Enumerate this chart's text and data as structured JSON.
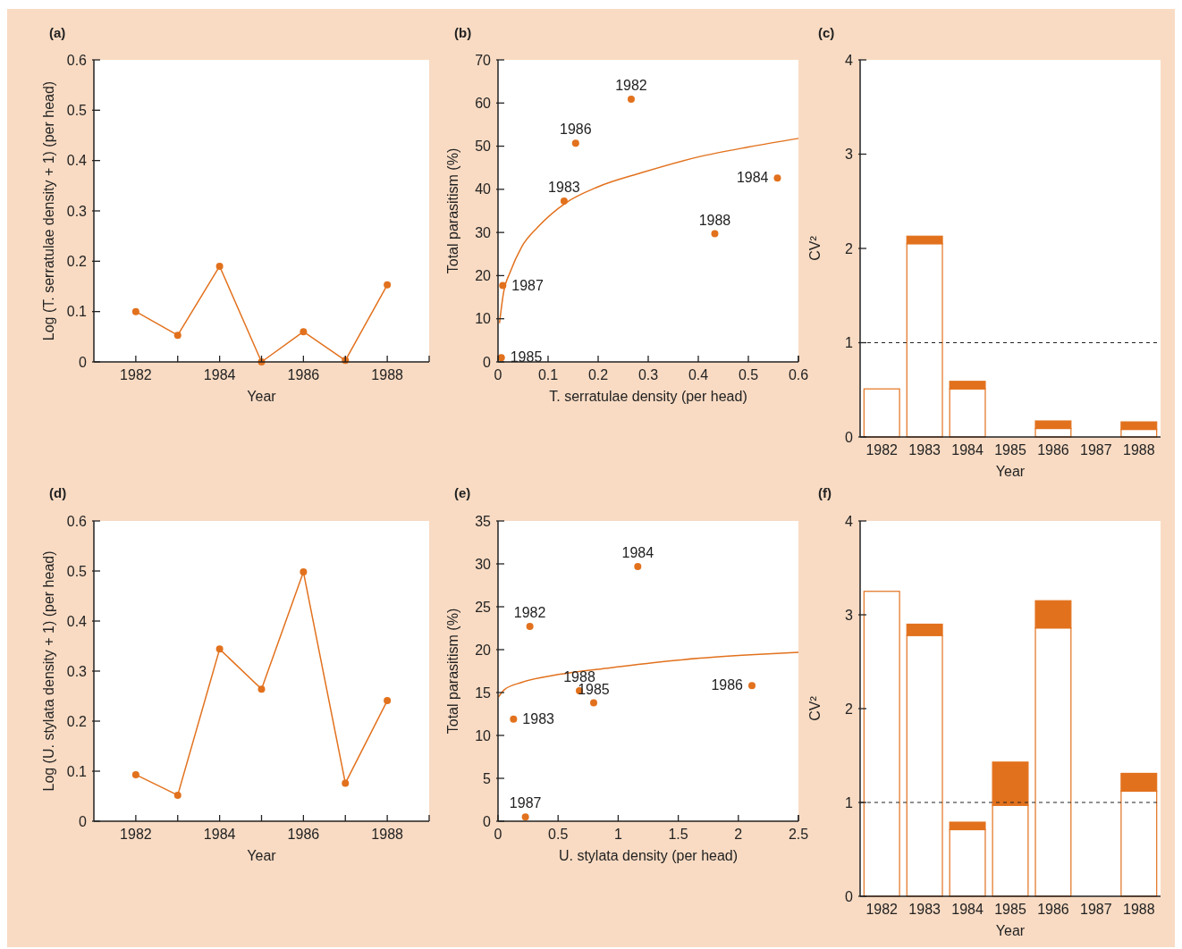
{
  "chart_data": [
    {
      "type": "line",
      "title": "(a)",
      "xlabel": "Year",
      "ylabel": "Log (T. serratulae density + 1) (per head)",
      "x": [
        1982,
        1983,
        1984,
        1985,
        1986,
        1987,
        1988
      ],
      "series": [
        {
          "color": "#e2711d",
          "values": [
            0.1,
            0.053,
            0.19,
            0,
            0.06,
            0.003,
            0.153
          ]
        }
      ],
      "xlim": [
        1981,
        1989
      ],
      "xticks": [
        1982,
        {
          "value": 1983,
          "label": null
        },
        1984,
        {
          "value": 1985,
          "label": null
        },
        1986,
        {
          "value": 1987,
          "label": null
        },
        1988
      ],
      "ylim": [
        0,
        0.6
      ],
      "yticks": [
        0,
        0.1,
        0.2,
        0.3,
        0.4,
        0.5,
        0.6
      ],
      "marker": "circle"
    },
    {
      "type": "scatter",
      "title": "(b)",
      "xlabel": "T. serratulae density (per head)",
      "ylabel": "Total parasitism (%)",
      "series": [
        {
          "color": "#e2711d",
          "x": [
            0.266,
            0.132,
            0.558,
            0.0066,
            0.155,
            0.0095,
            0.433
          ],
          "values": [
            60.9,
            37.3,
            42.6,
            1,
            50.7,
            17.7,
            29.7
          ]
        },
        {
          "type": "line",
          "color": "#e2711d",
          "marker": "none",
          "x": [
            0.003,
            0.011,
            0.025,
            0.047,
            0.08,
            0.136,
            0.2,
            0.285,
            0.4,
            0.5,
            0.6
          ],
          "values": [
            9,
            16,
            21,
            26.6,
            31.3,
            36.9,
            40.6,
            43.8,
            47.5,
            49.8,
            51.8
          ]
        }
      ],
      "xlim": [
        0,
        0.6
      ],
      "xticks": [
        0,
        0.1,
        0.2,
        0.3,
        0.4,
        0.5,
        0.6
      ],
      "ylim": [
        0,
        70
      ],
      "yticks": [
        0,
        10,
        20,
        30,
        40,
        50,
        60,
        70
      ],
      "marker": "circle",
      "annotations": [
        {
          "text": "1982",
          "x": 0.266,
          "y": 60.9
        },
        {
          "text": "1983",
          "x": 0.132,
          "y": 37.3
        },
        {
          "text": "1984",
          "x": 0.558,
          "y": 42.6
        },
        {
          "text": "1985",
          "x": 0.0066,
          "y": 1
        },
        {
          "text": "1986",
          "x": 0.155,
          "y": 50.7
        },
        {
          "text": "1987",
          "x": 0.0095,
          "y": 17.7
        },
        {
          "text": "1988",
          "x": 0.433,
          "y": 29.7
        }
      ]
    },
    {
      "type": "bar",
      "title": "(c)",
      "xlabel": "Year",
      "ylabel": "CV²",
      "categories": [
        "1982",
        "1983",
        "1984",
        "1985",
        "1986",
        "1987",
        "1988"
      ],
      "stacked": true,
      "series": [
        {
          "color": "#ffffff",
          "values": [
            0.51,
            2.05,
            0.51,
            0,
            0.09,
            0,
            0.08
          ]
        },
        {
          "color": "#e2711d",
          "values": [
            0,
            0.08,
            0.08,
            0,
            0.08,
            0,
            0.08
          ]
        }
      ],
      "ylim": [
        0,
        4
      ],
      "yticks": [
        0,
        1,
        2,
        3,
        4
      ],
      "ref_lines": [
        {
          "axis": "y",
          "value": 1,
          "line_style": "dashed",
          "color": "#222222"
        }
      ]
    },
    {
      "type": "line",
      "title": "(d)",
      "xlabel": "Year",
      "ylabel": "Log (U. stylata density + 1) (per head)",
      "x": [
        1982,
        1983,
        1984,
        1985,
        1986,
        1987,
        1988
      ],
      "series": [
        {
          "color": "#e2711d",
          "values": [
            0.093,
            0.052,
            0.344,
            0.264,
            0.498,
            0.076,
            0.241
          ]
        }
      ],
      "xlim": [
        1981,
        1989
      ],
      "xticks": [
        1982,
        {
          "value": 1983,
          "label": null
        },
        1984,
        {
          "value": 1985,
          "label": null
        },
        1986,
        {
          "value": 1987,
          "label": null
        },
        1988
      ],
      "ylim": [
        0,
        0.6
      ],
      "yticks": [
        0,
        0.1,
        0.2,
        0.3,
        0.4,
        0.5,
        0.6
      ],
      "marker": "circle"
    },
    {
      "type": "scatter",
      "title": "(e)",
      "xlabel": "U. stylata density (per head)",
      "ylabel": "Total parasitism (%)",
      "series": [
        {
          "color": "#e2711d",
          "x": [
            0.265,
            0.129,
            1.163,
            0.796,
            2.113,
            0.228,
            0.677
          ],
          "values": [
            22.7,
            11.9,
            29.7,
            13.8,
            15.8,
            0.5,
            15.2
          ]
        },
        {
          "type": "line",
          "color": "#e2711d",
          "marker": "none",
          "x": [
            0.005,
            0.05,
            0.2,
            0.5,
            0.94,
            1.3,
            1.68,
            2.1,
            2.5
          ],
          "values": [
            14.5,
            15.3,
            16.2,
            17.1,
            17.9,
            18.5,
            19,
            19.4,
            19.7
          ]
        }
      ],
      "xlim": [
        0,
        2.5
      ],
      "xticks": [
        0,
        0.5,
        1,
        {
          "value": 1.5,
          "label": "1.5"
        },
        2,
        2.5
      ],
      "ylim": [
        0,
        35
      ],
      "yticks": [
        0,
        5,
        10,
        15,
        20,
        25,
        30,
        35
      ],
      "marker": "circle",
      "annotations": [
        {
          "text": "1982",
          "x": 0.265,
          "y": 22.7
        },
        {
          "text": "1983",
          "x": 0.129,
          "y": 11.9
        },
        {
          "text": "1984",
          "x": 1.163,
          "y": 29.7
        },
        {
          "text": "1985",
          "x": 0.796,
          "y": 13.8
        },
        {
          "text": "1986",
          "x": 2.113,
          "y": 15.8
        },
        {
          "text": "1987",
          "x": 0.228,
          "y": 0.5
        },
        {
          "text": "1988",
          "x": 0.677,
          "y": 15.2
        }
      ]
    },
    {
      "type": "bar",
      "title": "(f)",
      "xlabel": "Year",
      "ylabel": "CV²",
      "categories": [
        "1982",
        "1983",
        "1984",
        "1985",
        "1986",
        "1987",
        "1988"
      ],
      "stacked": true,
      "series": [
        {
          "color": "#ffffff",
          "values": [
            3.25,
            2.78,
            0.71,
            0.97,
            2.86,
            0,
            1.12
          ]
        },
        {
          "color": "#e2711d",
          "values": [
            0,
            0.12,
            0.08,
            0.46,
            0.29,
            0,
            0.19
          ]
        }
      ],
      "ylim": [
        0,
        4
      ],
      "yticks": [
        0,
        1,
        2,
        3,
        4
      ],
      "ref_lines": [
        {
          "axis": "y",
          "value": 1,
          "line_style": "dashed",
          "color": "#222222"
        }
      ]
    }
  ]
}
